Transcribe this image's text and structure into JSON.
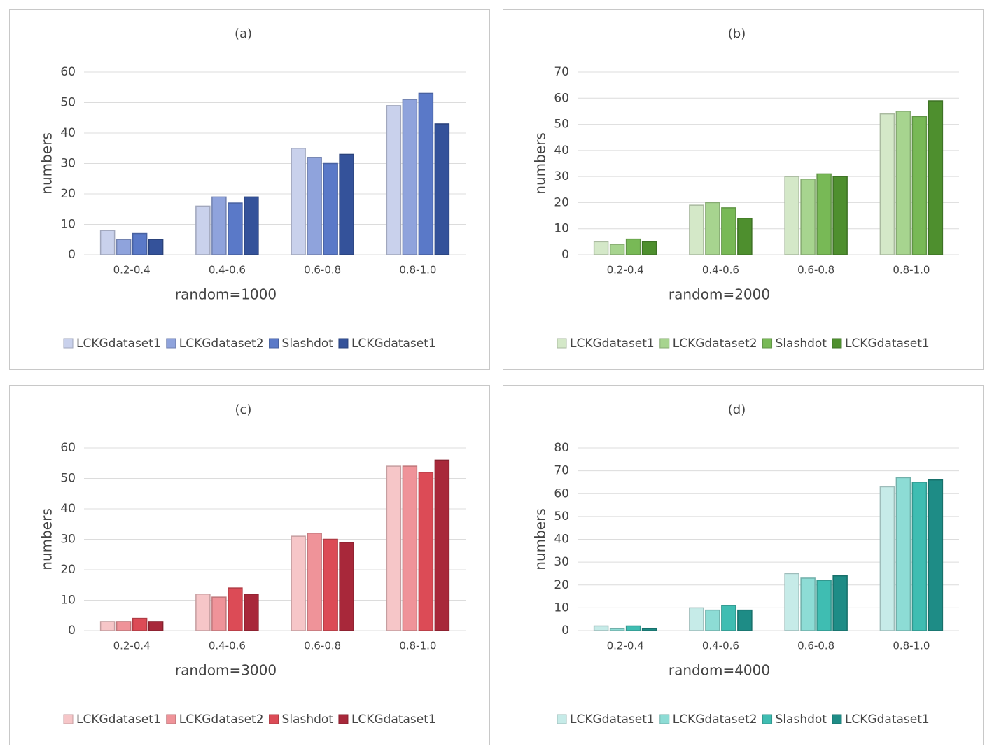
{
  "chart_data": [
    {
      "type": "bar",
      "title": "(a)",
      "x_label": "random=1000",
      "y_label": "numbers",
      "categories": [
        "0.2-0.4",
        "0.4-0.6",
        "0.6-0.8",
        "0.8-1.0"
      ],
      "series": [
        {
          "name": "LCKGdataset1",
          "color": "#c9d1ec",
          "values": [
            8,
            16,
            35,
            49
          ]
        },
        {
          "name": "LCKGdataset2",
          "color": "#8fa3dc",
          "values": [
            5,
            19,
            32,
            51
          ]
        },
        {
          "name": "Slashdot",
          "color": "#5a79c8",
          "values": [
            7,
            17,
            30,
            53
          ]
        },
        {
          "name": "LCKGdataset1",
          "color": "#34529a",
          "values": [
            5,
            19,
            33,
            43
          ]
        }
      ],
      "ylim": [
        0,
        60
      ],
      "yticks": [
        0,
        10,
        20,
        30,
        40,
        50,
        60
      ],
      "grid": true
    },
    {
      "type": "bar",
      "title": "(b)",
      "x_label": "random=2000",
      "y_label": "numbers",
      "categories": [
        "0.2-0.4",
        "0.4-0.6",
        "0.6-0.8",
        "0.8-1.0"
      ],
      "series": [
        {
          "name": "LCKGdataset1",
          "color": "#d4e8c8",
          "values": [
            5,
            19,
            30,
            54
          ]
        },
        {
          "name": "LCKGdataset2",
          "color": "#a7d48f",
          "values": [
            4,
            20,
            29,
            55
          ]
        },
        {
          "name": "Slashdot",
          "color": "#78b956",
          "values": [
            6,
            18,
            31,
            53
          ]
        },
        {
          "name": "LCKGdataset1",
          "color": "#4e8f2e",
          "values": [
            5,
            14,
            30,
            59
          ]
        }
      ],
      "ylim": [
        0,
        70
      ],
      "yticks": [
        0,
        10,
        20,
        30,
        40,
        50,
        60,
        70
      ],
      "grid": true
    },
    {
      "type": "bar",
      "title": "(c)",
      "x_label": "random=3000",
      "y_label": "numbers",
      "categories": [
        "0.2-0.4",
        "0.4-0.6",
        "0.6-0.8",
        "0.8-1.0"
      ],
      "series": [
        {
          "name": "LCKGdataset1",
          "color": "#f6c6c8",
          "values": [
            3,
            12,
            31,
            54
          ]
        },
        {
          "name": "LCKGdataset2",
          "color": "#ef9399",
          "values": [
            3,
            11,
            32,
            54
          ]
        },
        {
          "name": "Slashdot",
          "color": "#dc4b56",
          "values": [
            4,
            14,
            30,
            52
          ]
        },
        {
          "name": "LCKGdataset1",
          "color": "#a8283a",
          "values": [
            3,
            12,
            29,
            56
          ]
        }
      ],
      "ylim": [
        0,
        60
      ],
      "yticks": [
        0,
        10,
        20,
        30,
        40,
        50,
        60
      ],
      "grid": true
    },
    {
      "type": "bar",
      "title": "(d)",
      "x_label": "random=4000",
      "y_label": "numbers",
      "categories": [
        "0.2-0.4",
        "0.4-0.6",
        "0.6-0.8",
        "0.8-1.0"
      ],
      "series": [
        {
          "name": "LCKGdataset1",
          "color": "#c6ebe8",
          "values": [
            2,
            10,
            25,
            63
          ]
        },
        {
          "name": "LCKGdataset2",
          "color": "#8ddcd5",
          "values": [
            1,
            9,
            23,
            67
          ]
        },
        {
          "name": "Slashdot",
          "color": "#3fbdb2",
          "values": [
            2,
            11,
            22,
            65
          ]
        },
        {
          "name": "LCKGdataset1",
          "color": "#1e8c86",
          "values": [
            1,
            9,
            24,
            66
          ]
        }
      ],
      "ylim": [
        0,
        80
      ],
      "yticks": [
        0,
        10,
        20,
        30,
        40,
        50,
        60,
        70,
        80
      ],
      "grid": true
    }
  ]
}
